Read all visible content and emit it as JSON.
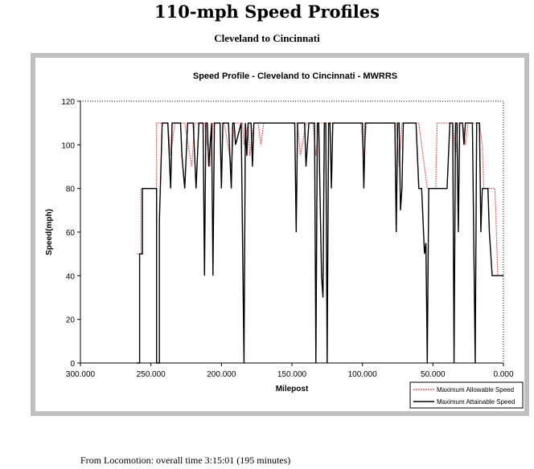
{
  "page": {
    "title": "110-mph Speed Profiles",
    "subtitle": "Cleveland to Cincinnati",
    "footer": "From Locomotion: overall time 3:15:01  (195 minutes)"
  },
  "chart_data": {
    "type": "line",
    "title": "Speed Profile - Cleveland to Cincinnati - MWRRS",
    "xlabel": "Milepost",
    "ylabel": "Speed(mph)",
    "xlim": [
      300,
      0
    ],
    "ylim": [
      0,
      120
    ],
    "x_ticks": [
      300,
      250,
      200,
      150,
      100,
      50,
      0
    ],
    "x_tick_labels": [
      "300.000",
      "250.000",
      "200.000",
      "150.000",
      "100.000",
      "50.000",
      "0.000"
    ],
    "y_ticks": [
      0,
      20,
      40,
      60,
      80,
      100,
      120
    ],
    "y_tick_labels": [
      "0",
      "20",
      "40",
      "60",
      "80",
      "100",
      "120"
    ],
    "grid": false,
    "legend_position": "bottom-right",
    "colors": {
      "allowable": "#e06060",
      "attainable": "#000000"
    },
    "series": [
      {
        "name": "Maximum Allowable Speed",
        "x": [
          260,
          257,
          257,
          246,
          246,
          243,
          238,
          236,
          233,
          229,
          226,
          221,
          219,
          214,
          212,
          208,
          206,
          200,
          198,
          193,
          191,
          185,
          184,
          181,
          180,
          177,
          174,
          172,
          170,
          146,
          144,
          140,
          135,
          133,
          131,
          127,
          125,
          101,
          99,
          97,
          76,
          74,
          72,
          69,
          68,
          64,
          62,
          60,
          54,
          52,
          51,
          48,
          47,
          36,
          34,
          32,
          29,
          27,
          25,
          24,
          22,
          20,
          18,
          17,
          15,
          14,
          8,
          6,
          4,
          0
        ],
        "y": [
          50,
          50,
          80,
          80,
          110,
          110,
          110,
          95,
          110,
          110,
          110,
          90,
          110,
          110,
          110,
          90,
          110,
          110,
          110,
          90,
          110,
          110,
          100,
          110,
          95,
          110,
          110,
          100,
          110,
          110,
          95,
          110,
          110,
          95,
          110,
          110,
          110,
          110,
          95,
          110,
          110,
          90,
          110,
          110,
          110,
          110,
          110,
          110,
          80,
          80,
          80,
          80,
          110,
          110,
          95,
          110,
          110,
          100,
          110,
          110,
          110,
          110,
          110,
          110,
          100,
          80,
          80,
          80,
          40,
          40
        ]
      },
      {
        "name": "Maximum Attainable Speed",
        "x": [
          260,
          258,
          258,
          256,
          256,
          246,
          246,
          244,
          244,
          242,
          240,
          238,
          236,
          235,
          234,
          232,
          231,
          229,
          228,
          226,
          224,
          222,
          221,
          220,
          218,
          216,
          214,
          213,
          212,
          211,
          210,
          209,
          207,
          206,
          205,
          204,
          202,
          201,
          200,
          199,
          197,
          195,
          193,
          192,
          191,
          190,
          188,
          186,
          184,
          183,
          182,
          181,
          180,
          179,
          178,
          177,
          176,
          175,
          174,
          173,
          172,
          171,
          170,
          166,
          160,
          155,
          150,
          148,
          147,
          146,
          145,
          143,
          141,
          140,
          138,
          136,
          134,
          133,
          132,
          131,
          129,
          128,
          127,
          126,
          125,
          124,
          123,
          122,
          121,
          120,
          118,
          116,
          110,
          104,
          102,
          100,
          99,
          98,
          97,
          95,
          90,
          84,
          80,
          77,
          76,
          75,
          74,
          73,
          72,
          71,
          70,
          68,
          66,
          64,
          62,
          60,
          58,
          56,
          55,
          54,
          53,
          52,
          51,
          50,
          48,
          46,
          44,
          40,
          38,
          36,
          35,
          34,
          33,
          32,
          31,
          30,
          29,
          28,
          27,
          26,
          25,
          24,
          23,
          22,
          20,
          19,
          18,
          17,
          16,
          15,
          14,
          13,
          12,
          11,
          10,
          8,
          6,
          4,
          2,
          0
        ],
        "y": [
          0,
          0,
          50,
          50,
          80,
          80,
          0,
          0,
          65,
          110,
          110,
          110,
          80,
          110,
          110,
          110,
          110,
          110,
          95,
          80,
          110,
          110,
          110,
          110,
          80,
          110,
          110,
          110,
          40,
          110,
          110,
          90,
          110,
          40,
          110,
          110,
          110,
          110,
          80,
          110,
          110,
          110,
          80,
          110,
          110,
          100,
          105,
          110,
          0,
          110,
          95,
          110,
          110,
          110,
          90,
          110,
          110,
          110,
          110,
          110,
          110,
          110,
          110,
          110,
          110,
          110,
          110,
          110,
          60,
          110,
          110,
          110,
          110,
          90,
          110,
          110,
          110,
          0,
          110,
          110,
          40,
          30,
          110,
          110,
          0,
          110,
          110,
          80,
          110,
          110,
          110,
          110,
          110,
          110,
          110,
          110,
          80,
          110,
          110,
          110,
          110,
          110,
          110,
          110,
          60,
          110,
          110,
          70,
          80,
          110,
          110,
          110,
          110,
          110,
          110,
          80,
          80,
          50,
          55,
          0,
          80,
          80,
          80,
          80,
          80,
          80,
          80,
          80,
          110,
          110,
          0,
          110,
          110,
          60,
          110,
          110,
          110,
          100,
          110,
          110,
          110,
          110,
          110,
          110,
          0,
          110,
          110,
          110,
          60,
          80,
          80,
          80,
          80,
          80,
          60,
          40,
          40,
          40,
          40,
          40
        ]
      }
    ]
  }
}
